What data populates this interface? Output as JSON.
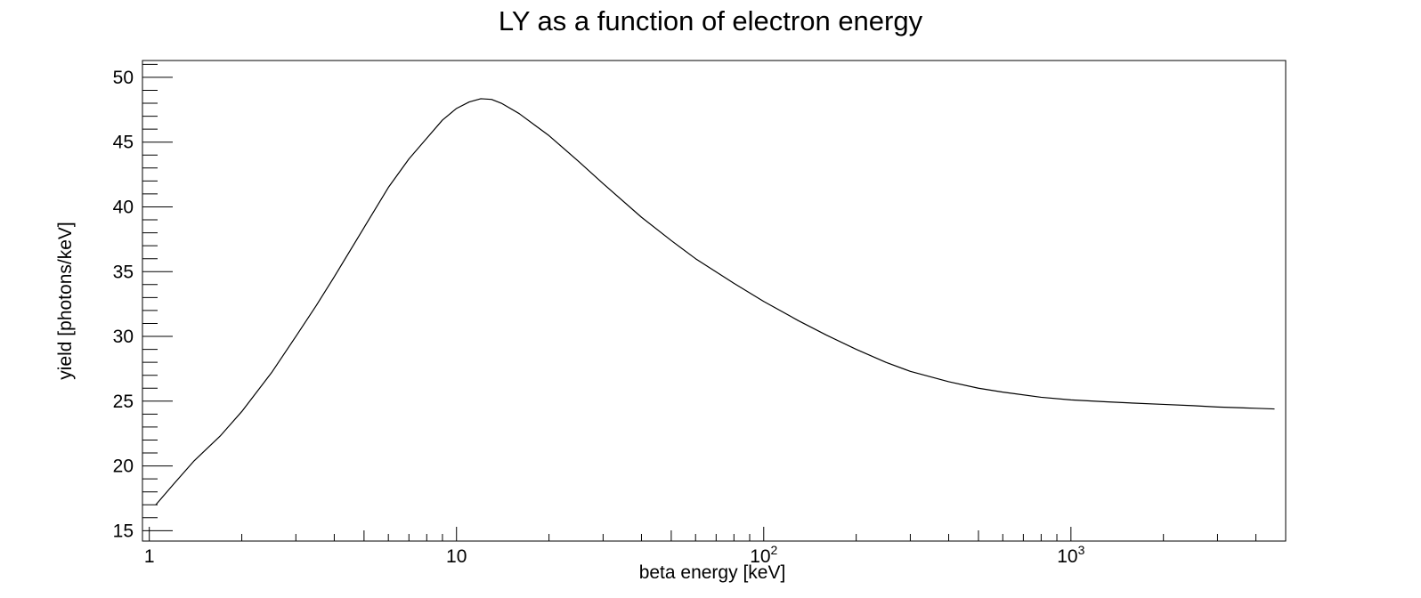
{
  "chart_data": {
    "type": "line",
    "title": "LY as a function of electron energy",
    "xlabel": "beta energy [keV]",
    "ylabel": "yield [photons/keV]",
    "x_scale": "log",
    "xlim": [
      0.95,
      5000
    ],
    "ylim": [
      14.2,
      51.3
    ],
    "grid": false,
    "x_ticks": [
      {
        "value": 1,
        "base": "1",
        "exp": ""
      },
      {
        "value": 10,
        "base": "10",
        "exp": ""
      },
      {
        "value": 100,
        "base": "10",
        "exp": "2"
      },
      {
        "value": 1000,
        "base": "10",
        "exp": "3"
      }
    ],
    "y_ticks": [
      15,
      20,
      25,
      30,
      35,
      40,
      45,
      50
    ],
    "series": [
      {
        "color": "#000000",
        "x": [
          1.05,
          1.2,
          1.4,
          1.7,
          2.0,
          2.5,
          3.0,
          3.5,
          4.0,
          5.0,
          6.0,
          7.0,
          8.0,
          9.0,
          10.0,
          11.0,
          12.0,
          13.0,
          14.0,
          16.0,
          18.0,
          20.0,
          25.0,
          30.0,
          40.0,
          50.0,
          60.0,
          80.0,
          100.0,
          130.0,
          160.0,
          200.0,
          250.0,
          300.0,
          400.0,
          500.0,
          600.0,
          800.0,
          1000.0,
          1300.0,
          1600.0,
          2000.0,
          2500.0,
          3000.0,
          4000.0,
          4600.0
        ],
        "y": [
          17.0,
          18.6,
          20.4,
          22.3,
          24.2,
          27.2,
          30.0,
          32.4,
          34.6,
          38.4,
          41.5,
          43.7,
          45.3,
          46.7,
          47.6,
          48.1,
          48.35,
          48.3,
          48.0,
          47.2,
          46.3,
          45.5,
          43.5,
          41.8,
          39.2,
          37.4,
          36.0,
          34.1,
          32.7,
          31.2,
          30.1,
          29.0,
          28.0,
          27.3,
          26.5,
          26.0,
          25.7,
          25.3,
          25.1,
          24.95,
          24.85,
          24.75,
          24.65,
          24.55,
          24.45,
          24.4
        ]
      }
    ]
  }
}
